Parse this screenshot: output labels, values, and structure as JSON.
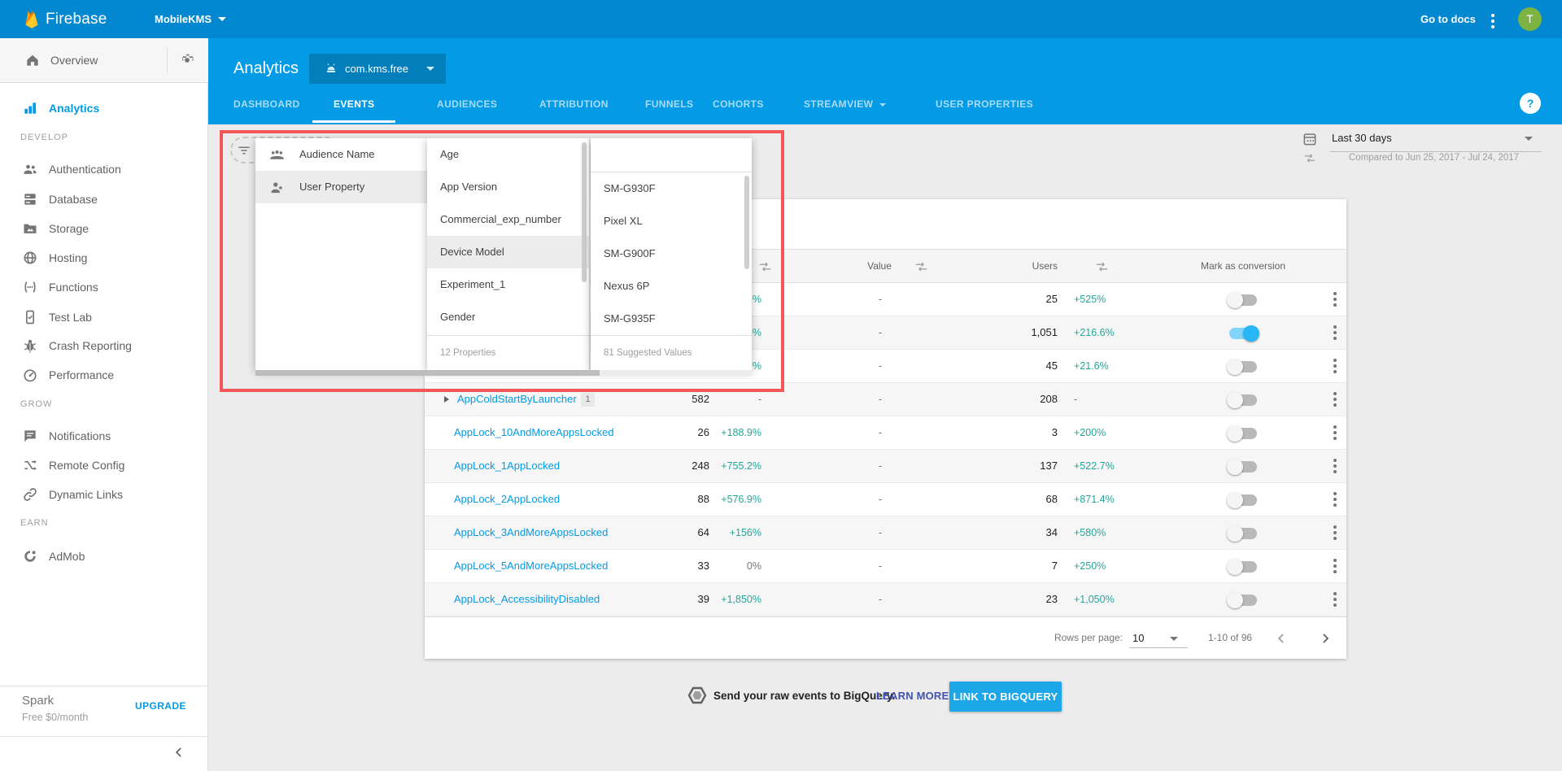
{
  "topbar": {
    "brand": "Firebase",
    "project": "MobileKMS",
    "go_to_docs": "Go to docs",
    "avatar_initial": "T"
  },
  "sidebar": {
    "overview_label": "Overview",
    "nav": [
      {
        "type": "item",
        "icon": "analytics",
        "label": "Analytics",
        "active": true
      },
      {
        "type": "section",
        "label": "DEVELOP"
      },
      {
        "type": "item",
        "icon": "auth",
        "label": "Authentication"
      },
      {
        "type": "item",
        "icon": "database",
        "label": "Database"
      },
      {
        "type": "item",
        "icon": "storage",
        "label": "Storage"
      },
      {
        "type": "item",
        "icon": "hosting",
        "label": "Hosting"
      },
      {
        "type": "item",
        "icon": "functions",
        "label": "Functions"
      },
      {
        "type": "item",
        "icon": "testlab",
        "label": "Test Lab"
      },
      {
        "type": "item",
        "icon": "crash",
        "label": "Crash Reporting"
      },
      {
        "type": "item",
        "icon": "performance",
        "label": "Performance"
      },
      {
        "type": "section",
        "label": "GROW"
      },
      {
        "type": "item",
        "icon": "notifications",
        "label": "Notifications"
      },
      {
        "type": "item",
        "icon": "remoteconfig",
        "label": "Remote Config"
      },
      {
        "type": "item",
        "icon": "dynamiclinks",
        "label": "Dynamic Links"
      },
      {
        "type": "section",
        "label": "EARN"
      },
      {
        "type": "item",
        "icon": "admob",
        "label": "AdMob"
      }
    ],
    "plan": {
      "tier": "Spark",
      "detail": "Free $0/month",
      "action": "UPGRADE"
    }
  },
  "header": {
    "title": "Analytics",
    "app_id": "com.kms.free",
    "help": "?",
    "active_tab": 1,
    "tabs": [
      {
        "label": "DASHBOARD"
      },
      {
        "label": "EVENTS"
      },
      {
        "label": "AUDIENCES"
      },
      {
        "label": "ATTRIBUTION"
      },
      {
        "label": "FUNNELS"
      },
      {
        "label": "COHORTS"
      },
      {
        "label": "STREAMVIEW",
        "caret": true
      },
      {
        "label": "USER PROPERTIES"
      }
    ]
  },
  "date": {
    "range": "Last 30 days",
    "compared": "Compared to Jun 25, 2017 - Jul 24, 2017"
  },
  "filter": {
    "categories": [
      {
        "label": "Audience Name",
        "icon": "audience",
        "selected": false
      },
      {
        "label": "User Property",
        "icon": "userprop",
        "selected": true
      }
    ],
    "properties": [
      {
        "label": "Age",
        "selected": false
      },
      {
        "label": "App Version",
        "selected": false
      },
      {
        "label": "Commercial_exp_number",
        "selected": false
      },
      {
        "label": "Device Model",
        "selected": true
      },
      {
        "label": "Experiment_1",
        "selected": false
      },
      {
        "label": "Gender",
        "selected": false
      }
    ],
    "properties_footer": "12 Properties",
    "values": [
      {
        "label": "SM-G930F"
      },
      {
        "label": "Pixel XL"
      },
      {
        "label": "SM-G900F"
      },
      {
        "label": "Nexus 6P"
      },
      {
        "label": "SM-G935F"
      }
    ],
    "values_footer": "81 Suggested Values"
  },
  "table": {
    "headers": {
      "value": "Value",
      "users": "Users",
      "conversion": "Mark as conversion"
    },
    "rows": [
      {
        "name": "",
        "count": "",
        "count_pct": "5%",
        "value": "-",
        "users": "25",
        "users_pct": "+525%",
        "toggle_on": false
      },
      {
        "name": "",
        "count": "",
        "count_pct": "6%",
        "value": "-",
        "users": "1,051",
        "users_pct": "+216.6%",
        "toggle_on": true
      },
      {
        "name": "",
        "count": "",
        "count_pct": "%",
        "value": "-",
        "users": "45",
        "users_pct": "+21.6%",
        "toggle_on": false
      },
      {
        "name": "AppColdStartByLauncher",
        "expander": true,
        "badge": "1",
        "count": "582",
        "count_pct": "-",
        "value": "-",
        "users": "208",
        "users_pct": "-",
        "toggle_on": false
      },
      {
        "name": "AppLock_10AndMoreAppsLocked",
        "count": "26",
        "count_pct": "+188.9%",
        "value": "-",
        "users": "3",
        "users_pct": "+200%",
        "toggle_on": false
      },
      {
        "name": "AppLock_1AppLocked",
        "count": "248",
        "count_pct": "+755.2%",
        "value": "-",
        "users": "137",
        "users_pct": "+522.7%",
        "toggle_on": false
      },
      {
        "name": "AppLock_2AppLocked",
        "count": "88",
        "count_pct": "+576.9%",
        "value": "-",
        "users": "68",
        "users_pct": "+871.4%",
        "toggle_on": false
      },
      {
        "name": "AppLock_3AndMoreAppsLocked",
        "count": "64",
        "count_pct": "+156%",
        "value": "-",
        "users": "34",
        "users_pct": "+580%",
        "toggle_on": false
      },
      {
        "name": "AppLock_5AndMoreAppsLocked",
        "count": "33",
        "count_pct": "0%",
        "value": "-",
        "users": "7",
        "users_pct": "+250%",
        "toggle_on": false
      },
      {
        "name": "AppLock_AccessibilityDisabled",
        "count": "39",
        "count_pct": "+1,850%",
        "value": "-",
        "users": "23",
        "users_pct": "+1,050%",
        "toggle_on": false
      }
    ],
    "pagination": {
      "rows_per_page_label": "Rows per page:",
      "rows_per_page_value": "10",
      "range_label": "1-10 of 96"
    }
  },
  "bigquery": {
    "message": "Send your raw events to BigQuery.",
    "link": "LEARN MORE",
    "button": "LINK TO BIGQUERY"
  },
  "colors": {
    "topbar": "#0288d1",
    "accent": "#039be5",
    "positive_delta": "#26a69a",
    "annotation_box": "#f2575a",
    "avatar": "#7cb342",
    "learn_more_link": "#4253af",
    "bigquery_button": "#1ea7e8"
  }
}
